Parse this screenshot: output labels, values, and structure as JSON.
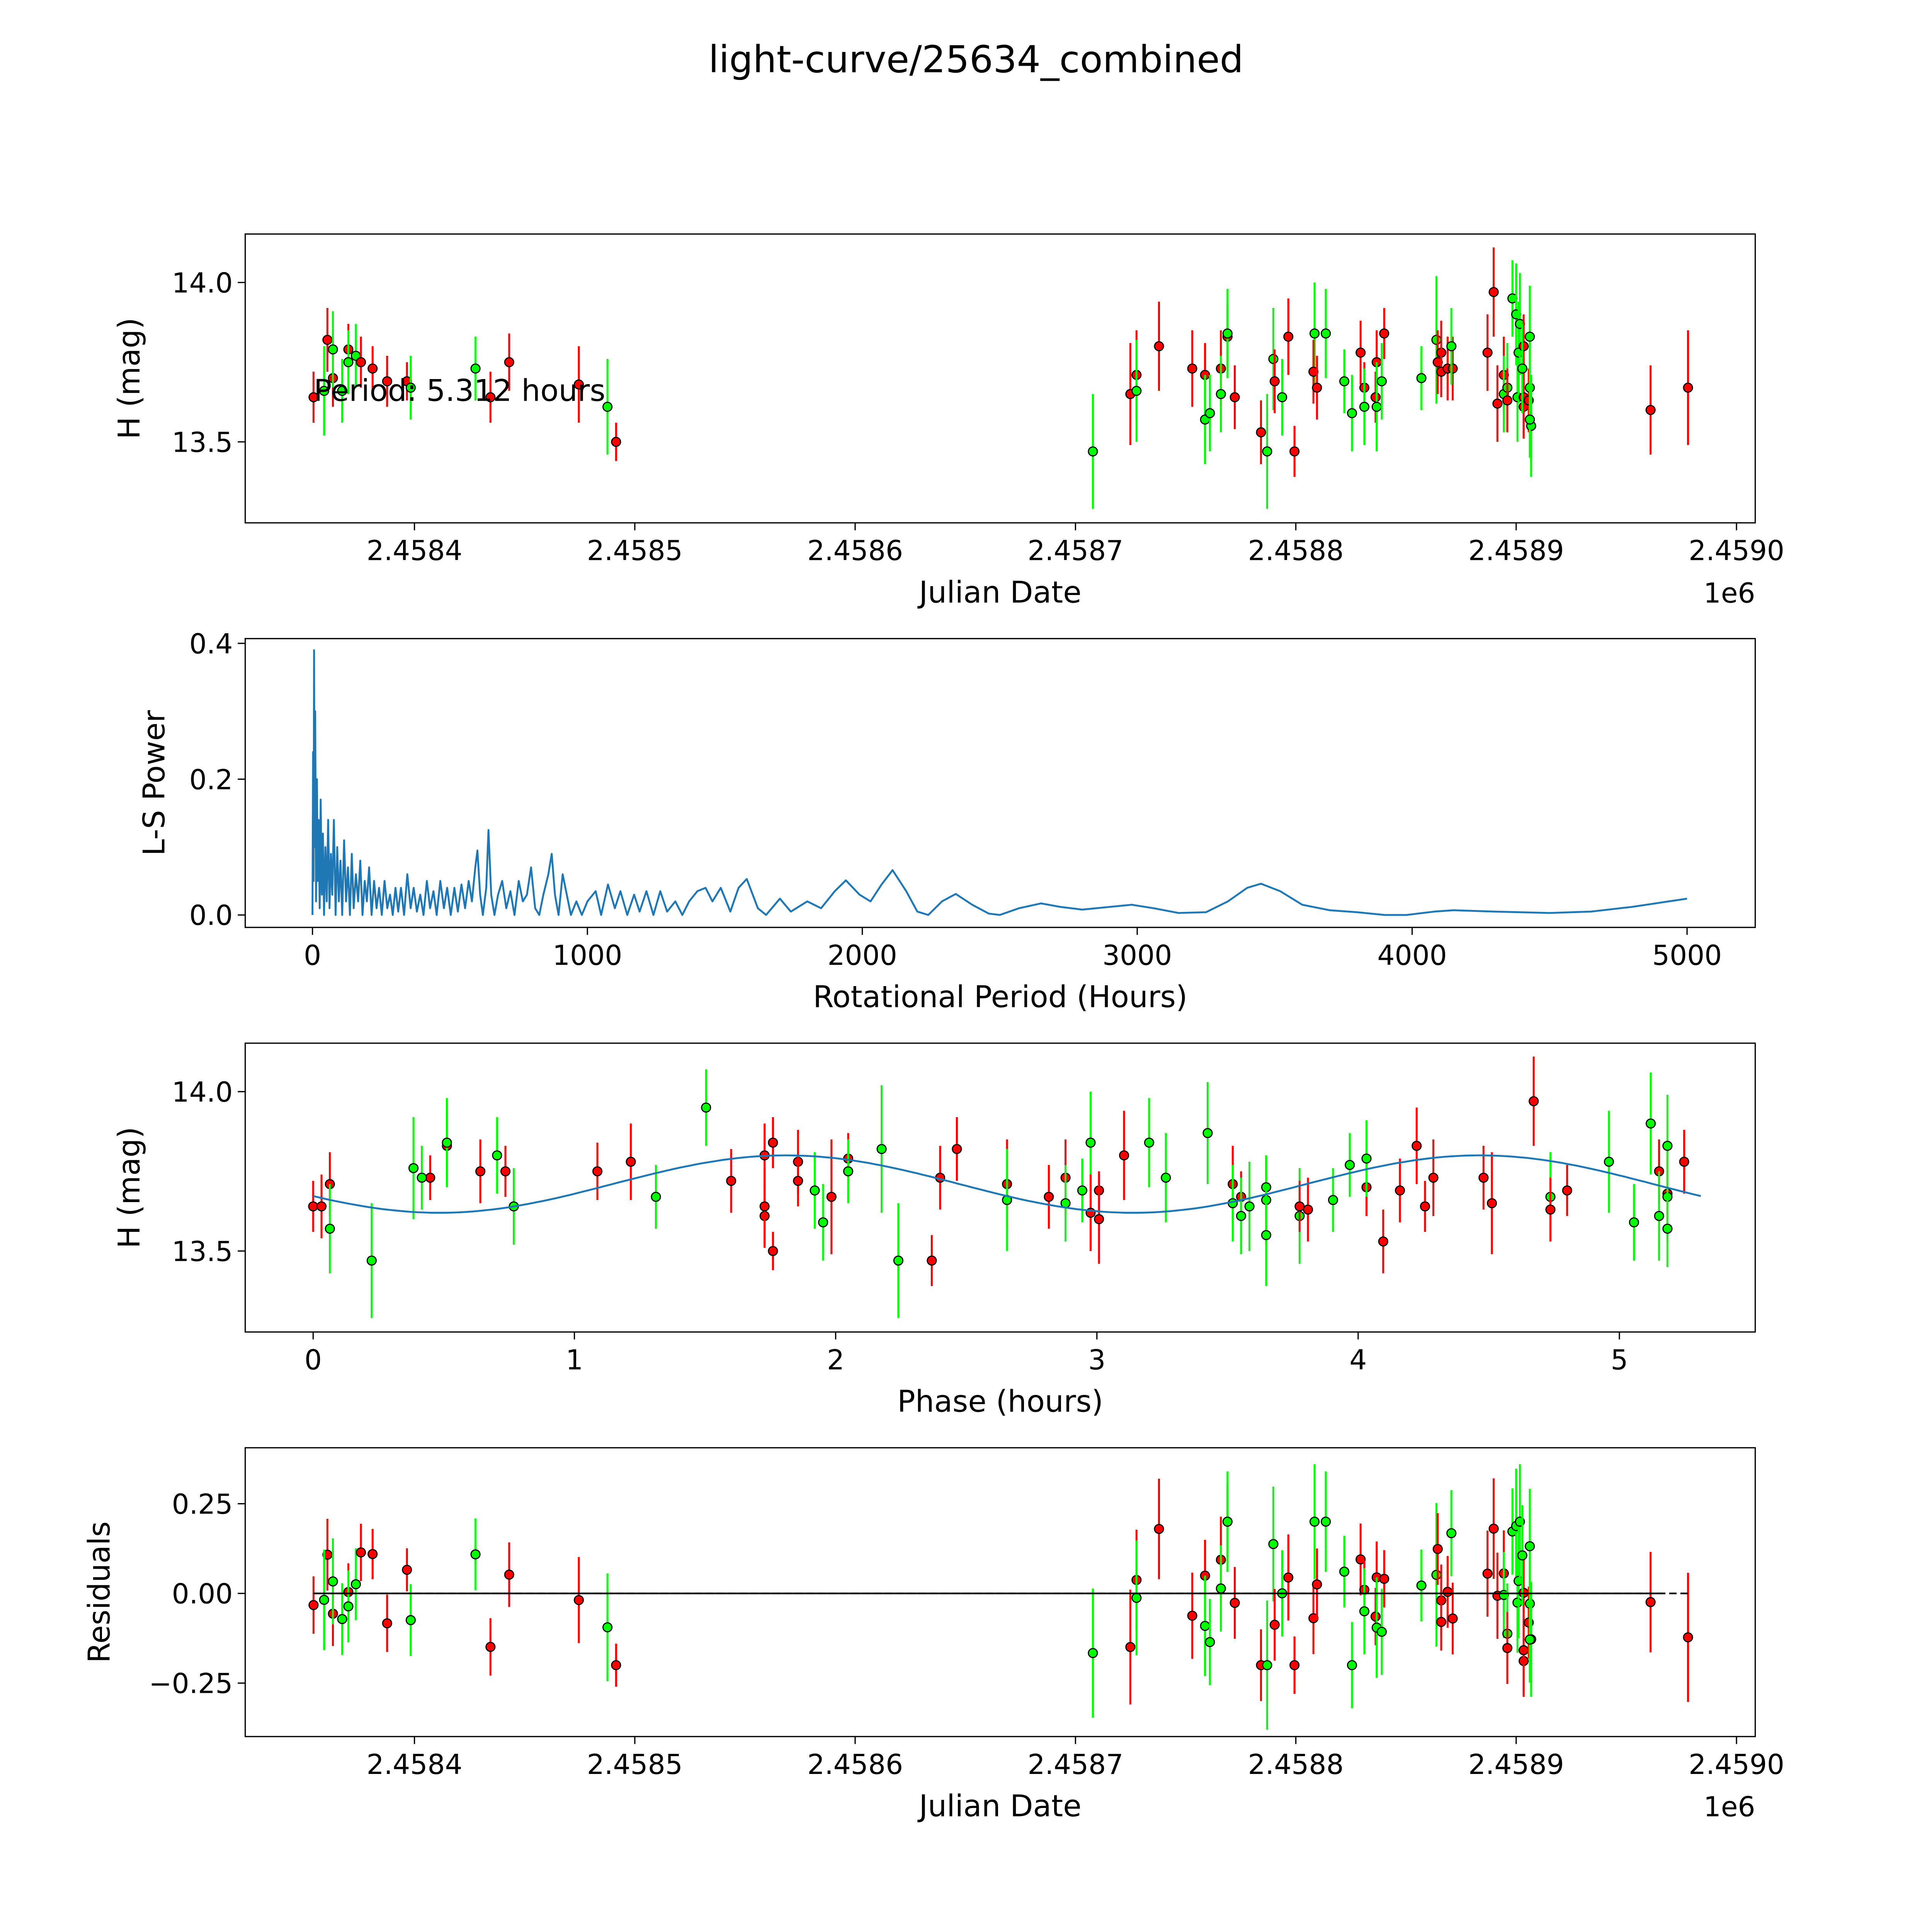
{
  "title": "light-curve/25634_combined",
  "chart_data": [
    {
      "type": "scatter",
      "panel": "light-curve",
      "xlabel": "Julian Date",
      "ylabel": "H (mag)",
      "x_offset_label": "1e6",
      "annotation": "Period: 5.312 hours",
      "xlim": [
        2458323.2,
        2459008.5
      ],
      "ylim": [
        13.246,
        14.152
      ],
      "xticks": [
        2458400,
        2458500,
        2458600,
        2458700,
        2458800,
        2458900,
        2459000
      ],
      "xticklabels": [
        "2.4584",
        "2.4585",
        "2.4586",
        "2.4587",
        "2.4588",
        "2.4589",
        "2.4590"
      ],
      "yticks": [
        13.5,
        14.0
      ],
      "yticklabels": [
        "13.5",
        "14.0"
      ],
      "point_colors": {
        "red": "#ff0000",
        "green": "#00ff00"
      },
      "points": [
        {
          "jd": 2458354.2,
          "mag": 13.64,
          "err": 0.08,
          "c": "red"
        },
        {
          "jd": 2458360.5,
          "mag": 13.82,
          "err": 0.1,
          "c": "red"
        },
        {
          "jd": 2458363.0,
          "mag": 13.7,
          "err": 0.09,
          "c": "red"
        },
        {
          "jd": 2458363.0,
          "mag": 13.79,
          "err": 0.12,
          "c": "green"
        },
        {
          "jd": 2458359.0,
          "mag": 13.66,
          "err": 0.14,
          "c": "green"
        },
        {
          "jd": 2458370.0,
          "mag": 13.79,
          "err": 0.08,
          "c": "red"
        },
        {
          "jd": 2458373.4,
          "mag": 13.77,
          "err": 0.1,
          "c": "green"
        },
        {
          "jd": 2458375.7,
          "mag": 13.75,
          "err": 0.08,
          "c": "red"
        },
        {
          "jd": 2458370.0,
          "mag": 13.75,
          "err": 0.1,
          "c": "green"
        },
        {
          "jd": 2458381.0,
          "mag": 13.73,
          "err": 0.07,
          "c": "red"
        },
        {
          "jd": 2458367.2,
          "mag": 13.66,
          "err": 0.1,
          "c": "green"
        },
        {
          "jd": 2458387.6,
          "mag": 13.69,
          "err": 0.08,
          "c": "red"
        },
        {
          "jd": 2458396.6,
          "mag": 13.69,
          "err": 0.06,
          "c": "red"
        },
        {
          "jd": 2458398.3,
          "mag": 13.67,
          "err": 0.1,
          "c": "green"
        },
        {
          "jd": 2458427.7,
          "mag": 13.73,
          "err": 0.1,
          "c": "green"
        },
        {
          "jd": 2458434.5,
          "mag": 13.64,
          "err": 0.08,
          "c": "red"
        },
        {
          "jd": 2458443.0,
          "mag": 13.75,
          "err": 0.09,
          "c": "red"
        },
        {
          "jd": 2458474.6,
          "mag": 13.68,
          "err": 0.12,
          "c": "red"
        },
        {
          "jd": 2458487.6,
          "mag": 13.61,
          "err": 0.15,
          "c": "green"
        },
        {
          "jd": 2458491.5,
          "mag": 13.5,
          "err": 0.06,
          "c": "red"
        },
        {
          "jd": 2458707.9,
          "mag": 13.47,
          "err": 0.18,
          "c": "green"
        },
        {
          "jd": 2458724.9,
          "mag": 13.65,
          "err": 0.16,
          "c": "red"
        },
        {
          "jd": 2458727.7,
          "mag": 13.71,
          "err": 0.14,
          "c": "red"
        },
        {
          "jd": 2458727.7,
          "mag": 13.66,
          "err": 0.16,
          "c": "green"
        },
        {
          "jd": 2458737.9,
          "mag": 13.8,
          "err": 0.14,
          "c": "red"
        },
        {
          "jd": 2458753.0,
          "mag": 13.73,
          "err": 0.12,
          "c": "red"
        },
        {
          "jd": 2458758.8,
          "mag": 13.71,
          "err": 0.1,
          "c": "red"
        },
        {
          "jd": 2458758.8,
          "mag": 13.57,
          "err": 0.14,
          "c": "green"
        },
        {
          "jd": 2458761.0,
          "mag": 13.59,
          "err": 0.12,
          "c": "green"
        },
        {
          "jd": 2458766.0,
          "mag": 13.73,
          "err": 0.12,
          "c": "red"
        },
        {
          "jd": 2458766.0,
          "mag": 13.65,
          "err": 0.12,
          "c": "green"
        },
        {
          "jd": 2458769.0,
          "mag": 13.83,
          "err": 0.1,
          "c": "red"
        },
        {
          "jd": 2458769.0,
          "mag": 13.84,
          "err": 0.14,
          "c": "green"
        },
        {
          "jd": 2458772.3,
          "mag": 13.64,
          "err": 0.1,
          "c": "red"
        },
        {
          "jd": 2458784.2,
          "mag": 13.53,
          "err": 0.1,
          "c": "red"
        },
        {
          "jd": 2458787.0,
          "mag": 13.47,
          "err": 0.18,
          "c": "green"
        },
        {
          "jd": 2458789.8,
          "mag": 13.76,
          "err": 0.16,
          "c": "green"
        },
        {
          "jd": 2458790.4,
          "mag": 13.69,
          "err": 0.1,
          "c": "red"
        },
        {
          "jd": 2458793.8,
          "mag": 13.64,
          "err": 0.12,
          "c": "green"
        },
        {
          "jd": 2458796.6,
          "mag": 13.83,
          "err": 0.12,
          "c": "red"
        },
        {
          "jd": 2458799.4,
          "mag": 13.47,
          "err": 0.08,
          "c": "red"
        },
        {
          "jd": 2458808.5,
          "mag": 13.84,
          "err": 0.16,
          "c": "green"
        },
        {
          "jd": 2458808.0,
          "mag": 13.72,
          "err": 0.1,
          "c": "red"
        },
        {
          "jd": 2458809.6,
          "mag": 13.67,
          "err": 0.1,
          "c": "red"
        },
        {
          "jd": 2458813.6,
          "mag": 13.84,
          "err": 0.14,
          "c": "green"
        },
        {
          "jd": 2458822.0,
          "mag": 13.69,
          "err": 0.1,
          "c": "green"
        },
        {
          "jd": 2458825.5,
          "mag": 13.59,
          "err": 0.12,
          "c": "green"
        },
        {
          "jd": 2458829.4,
          "mag": 13.78,
          "err": 0.1,
          "c": "red"
        },
        {
          "jd": 2458831.1,
          "mag": 13.67,
          "err": 0.08,
          "c": "red"
        },
        {
          "jd": 2458831.1,
          "mag": 13.61,
          "err": 0.12,
          "c": "green"
        },
        {
          "jd": 2458836.7,
          "mag": 13.75,
          "err": 0.1,
          "c": "red"
        },
        {
          "jd": 2458836.2,
          "mag": 13.64,
          "err": 0.08,
          "c": "red"
        },
        {
          "jd": 2458836.7,
          "mag": 13.61,
          "err": 0.14,
          "c": "green"
        },
        {
          "jd": 2458839.0,
          "mag": 13.69,
          "err": 0.12,
          "c": "green"
        },
        {
          "jd": 2458840.1,
          "mag": 13.84,
          "err": 0.08,
          "c": "red"
        },
        {
          "jd": 2458857.0,
          "mag": 13.7,
          "err": 0.1,
          "c": "green"
        },
        {
          "jd": 2458863.8,
          "mag": 13.82,
          "err": 0.2,
          "c": "green"
        },
        {
          "jd": 2458864.4,
          "mag": 13.75,
          "err": 0.1,
          "c": "red"
        },
        {
          "jd": 2458866.0,
          "mag": 13.78,
          "err": 0.1,
          "c": "red"
        },
        {
          "jd": 2458866.0,
          "mag": 13.72,
          "err": 0.08,
          "c": "red"
        },
        {
          "jd": 2458868.9,
          "mag": 13.73,
          "err": 0.1,
          "c": "red"
        },
        {
          "jd": 2458871.2,
          "mag": 13.73,
          "err": 0.1,
          "c": "red"
        },
        {
          "jd": 2458870.6,
          "mag": 13.8,
          "err": 0.12,
          "c": "green"
        },
        {
          "jd": 2458887.0,
          "mag": 13.78,
          "err": 0.12,
          "c": "red"
        },
        {
          "jd": 2458889.8,
          "mag": 13.97,
          "err": 0.14,
          "c": "red"
        },
        {
          "jd": 2458891.5,
          "mag": 13.62,
          "err": 0.12,
          "c": "red"
        },
        {
          "jd": 2458894.4,
          "mag": 13.71,
          "err": 0.12,
          "c": "red"
        },
        {
          "jd": 2458894.4,
          "mag": 13.65,
          "err": 0.12,
          "c": "green"
        },
        {
          "jd": 2458896.0,
          "mag": 13.67,
          "err": 0.14,
          "c": "green"
        },
        {
          "jd": 2458896.0,
          "mag": 13.63,
          "err": 0.1,
          "c": "red"
        },
        {
          "jd": 2458898.3,
          "mag": 13.95,
          "err": 0.12,
          "c": "green"
        },
        {
          "jd": 2458900.0,
          "mag": 13.9,
          "err": 0.16,
          "c": "green"
        },
        {
          "jd": 2458900.6,
          "mag": 13.64,
          "err": 0.14,
          "c": "green"
        },
        {
          "jd": 2458901.1,
          "mag": 13.78,
          "err": 0.16,
          "c": "green"
        },
        {
          "jd": 2458901.7,
          "mag": 13.87,
          "err": 0.16,
          "c": "green"
        },
        {
          "jd": 2458903.4,
          "mag": 13.61,
          "err": 0.1,
          "c": "red"
        },
        {
          "jd": 2458903.4,
          "mag": 13.8,
          "err": 0.1,
          "c": "red"
        },
        {
          "jd": 2458903.4,
          "mag": 13.64,
          "err": 0.12,
          "c": "red"
        },
        {
          "jd": 2458902.8,
          "mag": 13.73,
          "err": 0.14,
          "c": "green"
        },
        {
          "jd": 2458906.2,
          "mag": 13.83,
          "err": 0.16,
          "c": "green"
        },
        {
          "jd": 2458905.7,
          "mag": 13.63,
          "err": 0.1,
          "c": "red"
        },
        {
          "jd": 2458906.2,
          "mag": 13.67,
          "err": 0.14,
          "c": "green"
        },
        {
          "jd": 2458906.8,
          "mag": 13.55,
          "err": 0.16,
          "c": "green"
        },
        {
          "jd": 2458906.2,
          "mag": 13.57,
          "err": 0.12,
          "c": "green"
        },
        {
          "jd": 2458961.0,
          "mag": 13.6,
          "err": 0.14,
          "c": "red"
        },
        {
          "jd": 2458978.0,
          "mag": 13.67,
          "err": 0.18,
          "c": "red"
        }
      ]
    },
    {
      "type": "line",
      "panel": "periodogram",
      "xlabel": "Rotational Period (Hours)",
      "ylabel": "L-S Power",
      "xlim": [
        -244.6,
        5248
      ],
      "ylim": [
        -0.0183,
        0.407
      ],
      "xticks": [
        0,
        1000,
        2000,
        3000,
        4000,
        5000
      ],
      "xticklabels": [
        "0",
        "1000",
        "2000",
        "3000",
        "4000",
        "5000"
      ],
      "yticks": [
        0.0,
        0.2,
        0.4
      ],
      "yticklabels": [
        "0.0",
        "0.2",
        "0.4"
      ],
      "color": "#1f77b4",
      "x": [
        0,
        2,
        4,
        6,
        8,
        10,
        13,
        16,
        19,
        22,
        26,
        30,
        34,
        38,
        42,
        47,
        52,
        57,
        62,
        67,
        72,
        78,
        84,
        90,
        96,
        102,
        108,
        115,
        122,
        129,
        136,
        143,
        150,
        158,
        166,
        174,
        182,
        190,
        198,
        206,
        215,
        224,
        233,
        242,
        252,
        262,
        272,
        282,
        292,
        302,
        312,
        322,
        333,
        345,
        357,
        368,
        380,
        392,
        404,
        416,
        428,
        440,
        452,
        465,
        478,
        490,
        503,
        516,
        529,
        542,
        555,
        568,
        580,
        592,
        600,
        610,
        620,
        632,
        640,
        650,
        662,
        675,
        690,
        705,
        720,
        735,
        750,
        765,
        780,
        795,
        810,
        825,
        840,
        858,
        870,
        882,
        895,
        910,
        925,
        940,
        960,
        980,
        1000,
        1030,
        1050,
        1075,
        1100,
        1120,
        1145,
        1170,
        1190,
        1215,
        1240,
        1265,
        1290,
        1320,
        1345,
        1370,
        1400,
        1430,
        1455,
        1485,
        1520,
        1550,
        1580,
        1620,
        1650,
        1700,
        1740,
        1800,
        1850,
        1900,
        1940,
        1990,
        2030,
        2070,
        2110,
        2160,
        2200,
        2240,
        2290,
        2340,
        2400,
        2460,
        2500,
        2570,
        2650,
        2720,
        2800,
        2900,
        2980,
        3060,
        3150,
        3250,
        3330,
        3400,
        3450,
        3520,
        3600,
        3700,
        3800,
        3900,
        3980,
        4080,
        4150,
        4300,
        4500,
        4650,
        4800,
        4900,
        5000
      ],
      "y": [
        0,
        0.24,
        0.05,
        0.39,
        0.1,
        0.3,
        0.02,
        0.2,
        0.05,
        0.14,
        0.01,
        0.17,
        0.03,
        0.12,
        0.0,
        0.1,
        0.02,
        0.14,
        0.01,
        0.09,
        0.03,
        0.14,
        0.0,
        0.1,
        0.02,
        0.08,
        0.0,
        0.11,
        0.02,
        0.07,
        0.0,
        0.09,
        0.01,
        0.06,
        0.02,
        0.08,
        0.0,
        0.05,
        0.02,
        0.07,
        0.0,
        0.05,
        0.01,
        0.04,
        0.0,
        0.05,
        0.01,
        0.03,
        0.0,
        0.04,
        0.005,
        0.04,
        0.0,
        0.06,
        0.01,
        0.04,
        0.005,
        0.03,
        0.0,
        0.05,
        0.01,
        0.035,
        0.0,
        0.05,
        0.01,
        0.04,
        0.0,
        0.04,
        0.005,
        0.045,
        0.01,
        0.05,
        0.02,
        0.07,
        0.095,
        0.03,
        0.0,
        0.04,
        0.125,
        0.03,
        0.0,
        0.03,
        0.05,
        0.01,
        0.035,
        0.0,
        0.05,
        0.02,
        0.03,
        0.07,
        0.01,
        0.0,
        0.03,
        0.06,
        0.09,
        0.03,
        0.0,
        0.06,
        0.03,
        0.0,
        0.02,
        0.0,
        0.02,
        0.035,
        0.0,
        0.045,
        0.01,
        0.035,
        0.0,
        0.03,
        0.005,
        0.035,
        0.0,
        0.035,
        0.005,
        0.02,
        0.0,
        0.02,
        0.035,
        0.04,
        0.02,
        0.04,
        0.005,
        0.04,
        0.053,
        0.01,
        0.0,
        0.024,
        0.005,
        0.02,
        0.01,
        0.035,
        0.051,
        0.03,
        0.02,
        0.045,
        0.066,
        0.035,
        0.005,
        0.0,
        0.02,
        0.031,
        0.015,
        0.002,
        0.0,
        0.01,
        0.017,
        0.012,
        0.008,
        0.012,
        0.015,
        0.01,
        0.003,
        0.004,
        0.02,
        0.04,
        0.046,
        0.035,
        0.015,
        0.007,
        0.004,
        0.0,
        0.0,
        0.005,
        0.007,
        0.005,
        0.003,
        0.005,
        0.012,
        0.018,
        0.024
      ]
    },
    {
      "type": "scatter",
      "panel": "phased",
      "xlabel": "Phase (hours)",
      "ylabel": "H (mag)",
      "period_hours": 5.312,
      "xlim": [
        -0.26,
        5.52
      ],
      "ylim": [
        13.246,
        14.152
      ],
      "xticks": [
        0,
        1,
        2,
        3,
        4,
        5
      ],
      "xticklabels": [
        "0",
        "1",
        "2",
        "3",
        "4",
        "5"
      ],
      "yticks": [
        13.5,
        14.0
      ],
      "yticklabels": [
        "13.5",
        "14.0"
      ],
      "model": {
        "mean": 13.71,
        "amplitude": 0.09,
        "peak_phase": 1.81,
        "harmonic_period": 2.656,
        "color": "#1f77b4"
      }
    },
    {
      "type": "scatter",
      "panel": "residuals",
      "xlabel": "Julian Date",
      "ylabel": "Residuals",
      "x_offset_label": "1e6",
      "xlim": [
        2458323.2,
        2459008.5
      ],
      "ylim": [
        -0.399,
        0.406
      ],
      "xticks": [
        2458400,
        2458500,
        2458600,
        2458700,
        2458800,
        2458900,
        2459000
      ],
      "xticklabels": [
        "2.4584",
        "2.4585",
        "2.4586",
        "2.4587",
        "2.4588",
        "2.4589",
        "2.4590"
      ],
      "yticks": [
        -0.25,
        0.0,
        0.25
      ],
      "yticklabels": [
        "−0.25",
        "0.00",
        "0.25"
      ]
    }
  ]
}
